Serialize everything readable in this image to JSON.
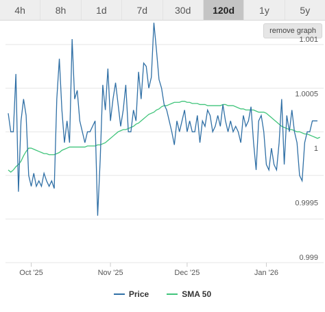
{
  "range_tabs": [
    {
      "label": "4h",
      "active": false
    },
    {
      "label": "8h",
      "active": false
    },
    {
      "label": "1d",
      "active": false
    },
    {
      "label": "7d",
      "active": false
    },
    {
      "label": "30d",
      "active": false
    },
    {
      "label": "120d",
      "active": true
    },
    {
      "label": "1y",
      "active": false
    },
    {
      "label": "5y",
      "active": false
    }
  ],
  "remove_graph_label": "remove graph",
  "colors": {
    "price": "#2f6fa5",
    "sma": "#3fc47a",
    "grid": "#e6e6e6"
  },
  "chart_data": {
    "type": "line",
    "xlabel": "",
    "ylabel": "",
    "x_tick_labels": [
      "Oct '25",
      "Nov '25",
      "Dec '25",
      "Jan '26"
    ],
    "x_tick_index": [
      9,
      40,
      70,
      101
    ],
    "y_tick_labels": [
      "1.001",
      "1.0005",
      "1",
      "0.9995",
      "0.999"
    ],
    "y_ticks": [
      1.001,
      1.0005,
      1.0,
      0.9995,
      0.999
    ],
    "ylim": [
      0.999,
      1.001
    ],
    "x_count": 122,
    "grid": true,
    "legend_position": "bottom",
    "series": [
      {
        "name": "Price",
        "values": [
          1.00037,
          1.0002,
          1.0002,
          1.00073,
          0.99965,
          1.0003,
          1.0005,
          1.00035,
          0.9998,
          0.9997,
          0.99982,
          0.9997,
          0.99975,
          0.9997,
          0.99982,
          0.99975,
          0.9997,
          0.99975,
          0.99968,
          1.0005,
          1.00087,
          1.0004,
          1.0001,
          1.0003,
          1.0001,
          1.00105,
          1.0005,
          1.00058,
          1.0003,
          1.0002,
          1.0001,
          1.0002,
          1.0002,
          1.00025,
          1.0003,
          0.99943,
          0.99995,
          1.00063,
          1.0004,
          1.00078,
          1.0003,
          1.0005,
          1.00065,
          1.00045,
          1.00025,
          1.0004,
          1.00063,
          1.0002,
          1.0002,
          1.0004,
          1.0003,
          1.00075,
          1.0005,
          1.00083,
          1.0008,
          1.0006,
          1.0007,
          1.0012,
          1.00095,
          1.00068,
          1.0006,
          1.00045,
          1.0004,
          1.0003,
          1.0002,
          1.00008,
          1.0003,
          1.0002,
          1.0003,
          1.0004,
          1.0002,
          1.0003,
          1.0002,
          1.0002,
          1.00035,
          1.0001,
          1.0003,
          1.00025,
          1.0004,
          1.00035,
          1.0002,
          1.00025,
          1.00035,
          1.00025,
          1.00045,
          1.0003,
          1.0002,
          1.0003,
          1.0002,
          1.00025,
          1.0002,
          1.0001,
          1.00035,
          1.00025,
          1.0003,
          1.00043,
          1.0001,
          0.99985,
          1.0003,
          1.00035,
          1.0002,
          0.9999,
          0.99985,
          1.00005,
          0.9999,
          0.99985,
          1.0001,
          1.0005,
          0.9999,
          1.00035,
          1.0002,
          1.0004,
          1.0002,
          1.0001,
          0.9998,
          0.99975,
          1.0001,
          1.0002,
          1.0002,
          1.0003,
          1.0003,
          1.0003
        ]
      },
      {
        "name": "SMA 50",
        "values": [
          0.99985,
          0.99983,
          0.99985,
          0.99988,
          0.9999,
          0.99993,
          0.99998,
          1.00002,
          1.00005,
          1.00005,
          1.00004,
          1.00003,
          1.00002,
          1.00001,
          1.0,
          1.0,
          0.99999,
          0.99999,
          0.99999,
          1.0,
          1.00001,
          1.00003,
          1.00004,
          1.00005,
          1.00006,
          1.00006,
          1.00006,
          1.00006,
          1.00006,
          1.00006,
          1.00006,
          1.00007,
          1.00007,
          1.00007,
          1.00007,
          1.00008,
          1.00008,
          1.00009,
          1.0001,
          1.00012,
          1.00014,
          1.00016,
          1.00018,
          1.0002,
          1.00021,
          1.00022,
          1.00022,
          1.00023,
          1.00024,
          1.00025,
          1.00027,
          1.00028,
          1.0003,
          1.00032,
          1.00034,
          1.00036,
          1.00037,
          1.00038,
          1.0004,
          1.00041,
          1.00043,
          1.00044,
          1.00044,
          1.00045,
          1.00046,
          1.00047,
          1.00047,
          1.00047,
          1.00048,
          1.00048,
          1.00047,
          1.00047,
          1.00046,
          1.00046,
          1.00046,
          1.00045,
          1.00045,
          1.00045,
          1.00044,
          1.00044,
          1.00044,
          1.00044,
          1.00044,
          1.00044,
          1.00045,
          1.00045,
          1.00044,
          1.00044,
          1.00044,
          1.00043,
          1.00042,
          1.00041,
          1.00041,
          1.0004,
          1.0004,
          1.0004,
          1.0004,
          1.00039,
          1.00038,
          1.00038,
          1.00038,
          1.00037,
          1.00035,
          1.00033,
          1.00031,
          1.00029,
          1.00027,
          1.00025,
          1.00024,
          1.00023,
          1.00022,
          1.00022,
          1.00021,
          1.0002,
          1.0002,
          1.00019,
          1.00018,
          1.00018,
          1.00017,
          1.00016,
          1.00015,
          1.00014,
          1.00015
        ]
      }
    ]
  }
}
